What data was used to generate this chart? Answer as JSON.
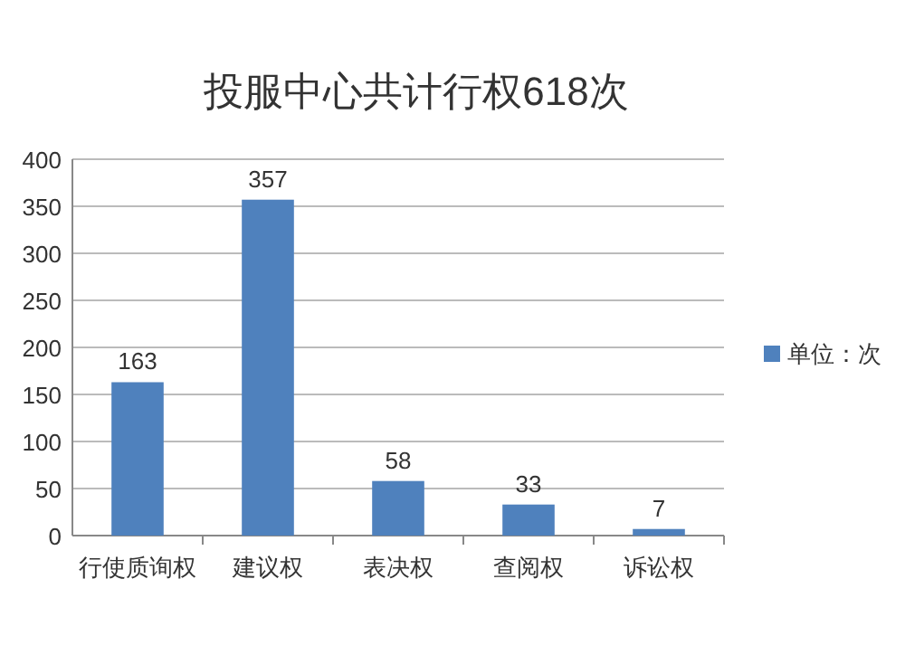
{
  "chart_data": {
    "type": "bar",
    "title": "投服中心共计行权618次",
    "categories": [
      "行使质询权",
      "建议权",
      "表决权",
      "查阅权",
      "诉讼权"
    ],
    "series": [
      {
        "name": "单位：次",
        "color": "#4f81bd",
        "values": [
          163,
          357,
          58,
          33,
          7
        ]
      }
    ],
    "ylim": [
      0,
      400
    ],
    "yticks": [
      0,
      50,
      100,
      150,
      200,
      250,
      300,
      350,
      400
    ],
    "grid": "y",
    "data_labels": true,
    "legend": "right"
  }
}
